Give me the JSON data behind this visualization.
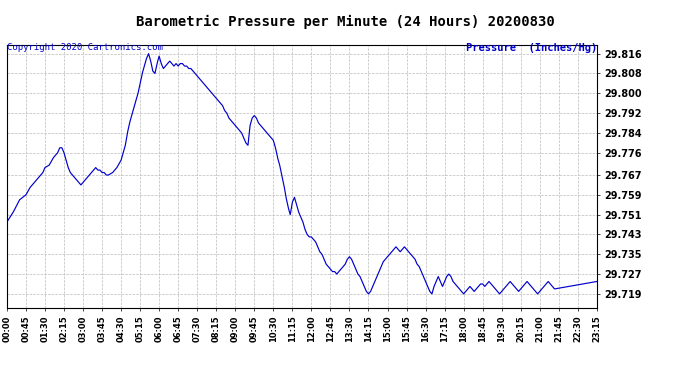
{
  "title": "Barometric Pressure per Minute (24 Hours) 20200830",
  "copyright": "Copyright 2020 Cartronics.com",
  "ylabel": "Pressure  (Inches/Hg)",
  "ylabel_color": "#0000CC",
  "copyright_color": "#0000CC",
  "line_color": "#0000CC",
  "background_color": "#ffffff",
  "grid_color": "#bbbbbb",
  "yticks": [
    29.719,
    29.727,
    29.735,
    29.743,
    29.751,
    29.759,
    29.767,
    29.776,
    29.784,
    29.792,
    29.8,
    29.808,
    29.816
  ],
  "ylim": [
    29.7135,
    29.8195
  ],
  "xtick_labels": [
    "00:00",
    "00:45",
    "01:30",
    "02:15",
    "03:00",
    "03:45",
    "04:30",
    "05:15",
    "06:00",
    "06:45",
    "07:30",
    "08:15",
    "09:00",
    "09:45",
    "10:30",
    "11:15",
    "12:00",
    "12:45",
    "13:30",
    "14:15",
    "15:00",
    "15:45",
    "16:30",
    "17:15",
    "18:00",
    "18:45",
    "19:30",
    "20:15",
    "21:00",
    "21:45",
    "22:30",
    "23:15"
  ],
  "time_points": [
    0,
    45,
    90,
    135,
    180,
    225,
    270,
    315,
    360,
    405,
    450,
    495,
    540,
    585,
    630,
    675,
    720,
    765,
    810,
    855,
    900,
    945,
    990,
    1035,
    1080,
    1125,
    1170,
    1215,
    1260,
    1305,
    1350,
    1395
  ],
  "pressure_keypoints": [
    [
      0,
      29.748
    ],
    [
      15,
      29.752
    ],
    [
      30,
      29.757
    ],
    [
      45,
      29.759
    ],
    [
      55,
      29.762
    ],
    [
      65,
      29.764
    ],
    [
      75,
      29.766
    ],
    [
      85,
      29.768
    ],
    [
      90,
      29.77
    ],
    [
      100,
      29.771
    ],
    [
      110,
      29.774
    ],
    [
      120,
      29.776
    ],
    [
      125,
      29.778
    ],
    [
      130,
      29.778
    ],
    [
      135,
      29.776
    ],
    [
      140,
      29.773
    ],
    [
      145,
      29.77
    ],
    [
      150,
      29.768
    ],
    [
      155,
      29.767
    ],
    [
      160,
      29.766
    ],
    [
      165,
      29.765
    ],
    [
      170,
      29.764
    ],
    [
      175,
      29.763
    ],
    [
      180,
      29.764
    ],
    [
      185,
      29.765
    ],
    [
      190,
      29.766
    ],
    [
      195,
      29.767
    ],
    [
      200,
      29.768
    ],
    [
      205,
      29.769
    ],
    [
      210,
      29.77
    ],
    [
      215,
      29.769
    ],
    [
      220,
      29.769
    ],
    [
      225,
      29.768
    ],
    [
      230,
      29.768
    ],
    [
      235,
      29.767
    ],
    [
      240,
      29.767
    ],
    [
      250,
      29.768
    ],
    [
      260,
      29.77
    ],
    [
      270,
      29.773
    ],
    [
      280,
      29.779
    ],
    [
      285,
      29.784
    ],
    [
      290,
      29.788
    ],
    [
      295,
      29.791
    ],
    [
      300,
      29.794
    ],
    [
      305,
      29.797
    ],
    [
      310,
      29.8
    ],
    [
      315,
      29.804
    ],
    [
      320,
      29.808
    ],
    [
      325,
      29.811
    ],
    [
      330,
      29.814
    ],
    [
      335,
      29.816
    ],
    [
      340,
      29.813
    ],
    [
      345,
      29.809
    ],
    [
      350,
      29.808
    ],
    [
      355,
      29.812
    ],
    [
      360,
      29.815
    ],
    [
      365,
      29.812
    ],
    [
      370,
      29.81
    ],
    [
      375,
      29.811
    ],
    [
      380,
      29.812
    ],
    [
      385,
      29.813
    ],
    [
      390,
      29.812
    ],
    [
      395,
      29.811
    ],
    [
      400,
      29.812
    ],
    [
      405,
      29.811
    ],
    [
      410,
      29.812
    ],
    [
      415,
      29.812
    ],
    [
      420,
      29.811
    ],
    [
      425,
      29.811
    ],
    [
      430,
      29.81
    ],
    [
      435,
      29.81
    ],
    [
      440,
      29.809
    ],
    [
      445,
      29.808
    ],
    [
      450,
      29.807
    ],
    [
      455,
      29.806
    ],
    [
      460,
      29.805
    ],
    [
      465,
      29.804
    ],
    [
      470,
      29.803
    ],
    [
      475,
      29.802
    ],
    [
      480,
      29.801
    ],
    [
      485,
      29.8
    ],
    [
      490,
      29.799
    ],
    [
      495,
      29.798
    ],
    [
      500,
      29.797
    ],
    [
      510,
      29.795
    ],
    [
      515,
      29.793
    ],
    [
      520,
      29.792
    ],
    [
      525,
      29.79
    ],
    [
      530,
      29.789
    ],
    [
      535,
      29.788
    ],
    [
      540,
      29.787
    ],
    [
      545,
      29.786
    ],
    [
      555,
      29.784
    ],
    [
      560,
      29.782
    ],
    [
      565,
      29.78
    ],
    [
      570,
      29.779
    ],
    [
      575,
      29.787
    ],
    [
      580,
      29.79
    ],
    [
      585,
      29.791
    ],
    [
      590,
      29.79
    ],
    [
      595,
      29.788
    ],
    [
      600,
      29.787
    ],
    [
      610,
      29.785
    ],
    [
      615,
      29.784
    ],
    [
      620,
      29.783
    ],
    [
      625,
      29.782
    ],
    [
      630,
      29.781
    ],
    [
      635,
      29.778
    ],
    [
      640,
      29.774
    ],
    [
      645,
      29.771
    ],
    [
      650,
      29.767
    ],
    [
      655,
      29.763
    ],
    [
      660,
      29.758
    ],
    [
      665,
      29.754
    ],
    [
      670,
      29.751
    ],
    [
      675,
      29.756
    ],
    [
      680,
      29.758
    ],
    [
      685,
      29.755
    ],
    [
      690,
      29.752
    ],
    [
      695,
      29.75
    ],
    [
      700,
      29.748
    ],
    [
      705,
      29.745
    ],
    [
      710,
      29.743
    ],
    [
      715,
      29.742
    ],
    [
      720,
      29.742
    ],
    [
      725,
      29.741
    ],
    [
      730,
      29.74
    ],
    [
      735,
      29.738
    ],
    [
      740,
      29.736
    ],
    [
      745,
      29.735
    ],
    [
      750,
      29.733
    ],
    [
      755,
      29.731
    ],
    [
      760,
      29.73
    ],
    [
      765,
      29.729
    ],
    [
      770,
      29.728
    ],
    [
      775,
      29.728
    ],
    [
      780,
      29.727
    ],
    [
      785,
      29.728
    ],
    [
      790,
      29.729
    ],
    [
      795,
      29.73
    ],
    [
      800,
      29.731
    ],
    [
      805,
      29.733
    ],
    [
      810,
      29.734
    ],
    [
      815,
      29.733
    ],
    [
      820,
      29.731
    ],
    [
      825,
      29.729
    ],
    [
      830,
      29.727
    ],
    [
      835,
      29.726
    ],
    [
      840,
      29.724
    ],
    [
      845,
      29.722
    ],
    [
      850,
      29.72
    ],
    [
      855,
      29.719
    ],
    [
      860,
      29.72
    ],
    [
      865,
      29.722
    ],
    [
      870,
      29.724
    ],
    [
      875,
      29.726
    ],
    [
      880,
      29.728
    ],
    [
      885,
      29.73
    ],
    [
      890,
      29.732
    ],
    [
      895,
      29.733
    ],
    [
      900,
      29.734
    ],
    [
      905,
      29.735
    ],
    [
      910,
      29.736
    ],
    [
      915,
      29.737
    ],
    [
      920,
      29.738
    ],
    [
      925,
      29.737
    ],
    [
      930,
      29.736
    ],
    [
      935,
      29.737
    ],
    [
      940,
      29.738
    ],
    [
      945,
      29.737
    ],
    [
      950,
      29.736
    ],
    [
      955,
      29.735
    ],
    [
      960,
      29.734
    ],
    [
      965,
      29.733
    ],
    [
      970,
      29.731
    ],
    [
      975,
      29.73
    ],
    [
      980,
      29.728
    ],
    [
      985,
      29.726
    ],
    [
      990,
      29.724
    ],
    [
      995,
      29.722
    ],
    [
      1000,
      29.72
    ],
    [
      1005,
      29.719
    ],
    [
      1010,
      29.722
    ],
    [
      1015,
      29.724
    ],
    [
      1020,
      29.726
    ],
    [
      1025,
      29.724
    ],
    [
      1030,
      29.722
    ],
    [
      1035,
      29.724
    ],
    [
      1040,
      29.726
    ],
    [
      1045,
      29.727
    ],
    [
      1050,
      29.726
    ],
    [
      1055,
      29.724
    ],
    [
      1060,
      29.723
    ],
    [
      1065,
      29.722
    ],
    [
      1070,
      29.721
    ],
    [
      1075,
      29.72
    ],
    [
      1080,
      29.719
    ],
    [
      1085,
      29.72
    ],
    [
      1090,
      29.721
    ],
    [
      1095,
      29.722
    ],
    [
      1100,
      29.721
    ],
    [
      1105,
      29.72
    ],
    [
      1110,
      29.721
    ],
    [
      1115,
      29.722
    ],
    [
      1120,
      29.723
    ],
    [
      1125,
      29.723
    ],
    [
      1130,
      29.722
    ],
    [
      1135,
      29.723
    ],
    [
      1140,
      29.724
    ],
    [
      1145,
      29.723
    ],
    [
      1150,
      29.722
    ],
    [
      1155,
      29.721
    ],
    [
      1160,
      29.72
    ],
    [
      1165,
      29.719
    ],
    [
      1170,
      29.72
    ],
    [
      1175,
      29.721
    ],
    [
      1180,
      29.722
    ],
    [
      1185,
      29.723
    ],
    [
      1190,
      29.724
    ],
    [
      1195,
      29.723
    ],
    [
      1200,
      29.722
    ],
    [
      1205,
      29.721
    ],
    [
      1210,
      29.72
    ],
    [
      1215,
      29.721
    ],
    [
      1220,
      29.722
    ],
    [
      1225,
      29.723
    ],
    [
      1230,
      29.724
    ],
    [
      1235,
      29.723
    ],
    [
      1240,
      29.722
    ],
    [
      1245,
      29.721
    ],
    [
      1250,
      29.72
    ],
    [
      1255,
      29.719
    ],
    [
      1260,
      29.72
    ],
    [
      1265,
      29.721
    ],
    [
      1270,
      29.722
    ],
    [
      1275,
      29.723
    ],
    [
      1280,
      29.724
    ],
    [
      1285,
      29.723
    ],
    [
      1290,
      29.722
    ],
    [
      1295,
      29.721
    ],
    [
      1395,
      29.724
    ]
  ]
}
